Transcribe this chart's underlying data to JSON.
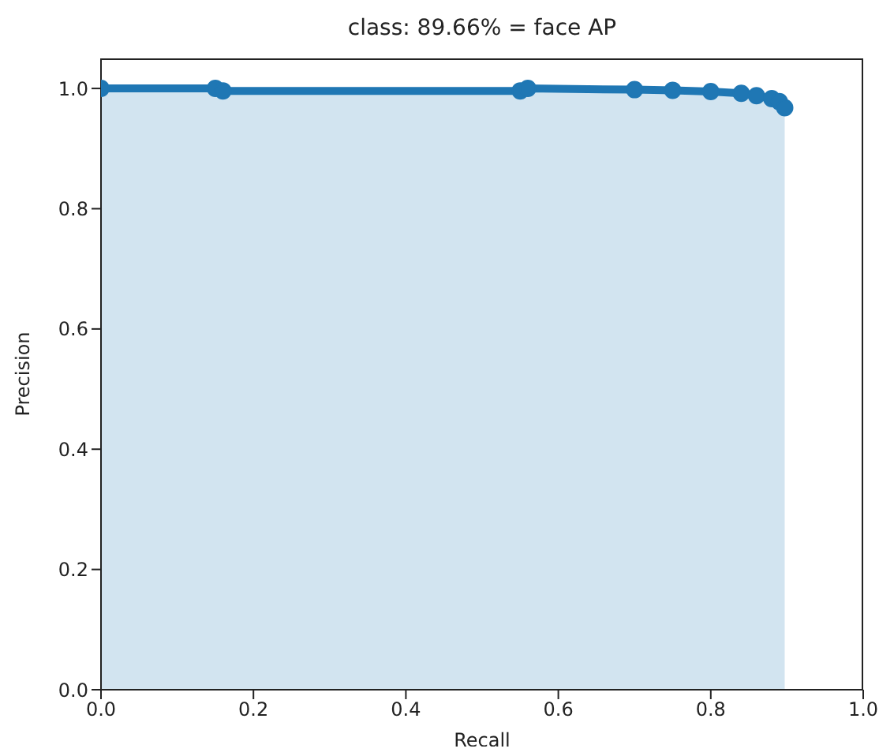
{
  "chart_data": {
    "type": "area",
    "title": "class: 89.66% = face AP",
    "xlabel": "Recall",
    "ylabel": "Precision",
    "x": [
      0,
      0.15,
      0.16,
      0.55,
      0.56,
      0.7,
      0.75,
      0.8,
      0.84,
      0.86,
      0.88,
      0.89,
      0.897
    ],
    "series": [
      {
        "color": "#1f77b4",
        "values": [
          1.0,
          1.0,
          0.996,
          0.996,
          1.0,
          0.998,
          0.997,
          0.995,
          0.992,
          0.988,
          0.983,
          0.978,
          0.968
        ]
      }
    ],
    "xlim": [
      0,
      1
    ],
    "xticks": [
      {
        "value": 0,
        "label": "0.0"
      },
      0.2,
      0.4,
      0.6,
      0.8,
      {
        "value": 1,
        "label": "1.0"
      }
    ],
    "ylim": [
      0,
      1.05
    ],
    "yticks": [
      {
        "value": 0,
        "label": "0.0"
      },
      0.2,
      0.4,
      0.6,
      0.8,
      {
        "value": 1,
        "label": "1.0"
      }
    ],
    "marker": "circle",
    "grid": false,
    "legend": false
  }
}
